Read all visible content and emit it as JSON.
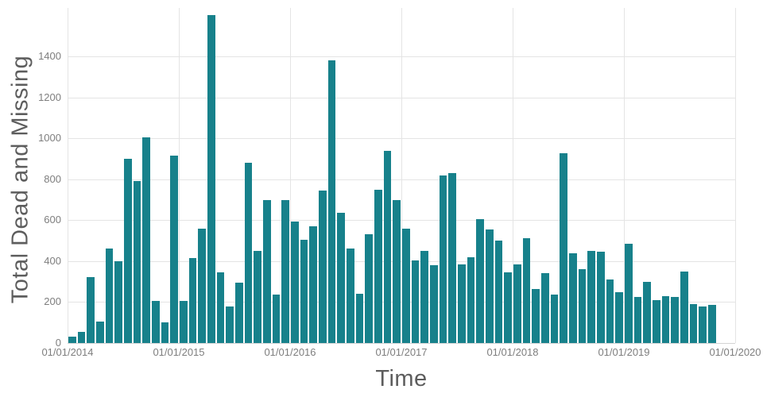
{
  "chart_data": {
    "type": "bar",
    "title": "",
    "xlabel": "Time",
    "ylabel": "Total Dead and Missing",
    "bar_color": "#17818b",
    "grid_color": "#e4e4e4",
    "axis_title_color": "#5d5d5d",
    "tick_color": "#7e7e7e",
    "grid": true,
    "legend_position": "none",
    "ylim": [
      0,
      1636
    ],
    "y_ticks": [
      0,
      200,
      400,
      600,
      800,
      1000,
      1200,
      1400
    ],
    "x_tick_labels": [
      "01/01/2014",
      "01/01/2015",
      "01/01/2016",
      "01/01/2017",
      "01/01/2018",
      "01/01/2019",
      "01/01/2020"
    ],
    "x": [
      "2014-01",
      "2014-02",
      "2014-03",
      "2014-04",
      "2014-05",
      "2014-06",
      "2014-07",
      "2014-08",
      "2014-09",
      "2014-10",
      "2014-11",
      "2014-12",
      "2015-01",
      "2015-02",
      "2015-03",
      "2015-04",
      "2015-05",
      "2015-06",
      "2015-07",
      "2015-08",
      "2015-09",
      "2015-10",
      "2015-11",
      "2015-12",
      "2016-01",
      "2016-02",
      "2016-03",
      "2016-04",
      "2016-05",
      "2016-06",
      "2016-07",
      "2016-08",
      "2016-09",
      "2016-10",
      "2016-11",
      "2016-12",
      "2017-01",
      "2017-02",
      "2017-03",
      "2017-04",
      "2017-05",
      "2017-06",
      "2017-07",
      "2017-08",
      "2017-09",
      "2017-10",
      "2017-11",
      "2017-12",
      "2018-01",
      "2018-02",
      "2018-03",
      "2018-04",
      "2018-05",
      "2018-06",
      "2018-07",
      "2018-08",
      "2018-09",
      "2018-10",
      "2018-11",
      "2018-12",
      "2019-01",
      "2019-02",
      "2019-03",
      "2019-04",
      "2019-05",
      "2019-06",
      "2019-07",
      "2019-08",
      "2019-09",
      "2019-10"
    ],
    "values": [
      30,
      55,
      320,
      105,
      460,
      400,
      900,
      790,
      1005,
      205,
      100,
      915,
      205,
      415,
      560,
      1600,
      345,
      180,
      295,
      880,
      450,
      700,
      235,
      700,
      595,
      505,
      570,
      745,
      1380,
      635,
      460,
      240,
      530,
      750,
      940,
      700,
      560,
      405,
      450,
      380,
      820,
      830,
      385,
      420,
      605,
      555,
      500,
      345,
      385,
      510,
      265,
      340,
      235,
      925,
      440,
      360,
      450,
      445,
      310,
      250,
      485,
      225,
      300,
      210,
      230,
      225,
      350,
      190,
      180,
      185
    ]
  }
}
